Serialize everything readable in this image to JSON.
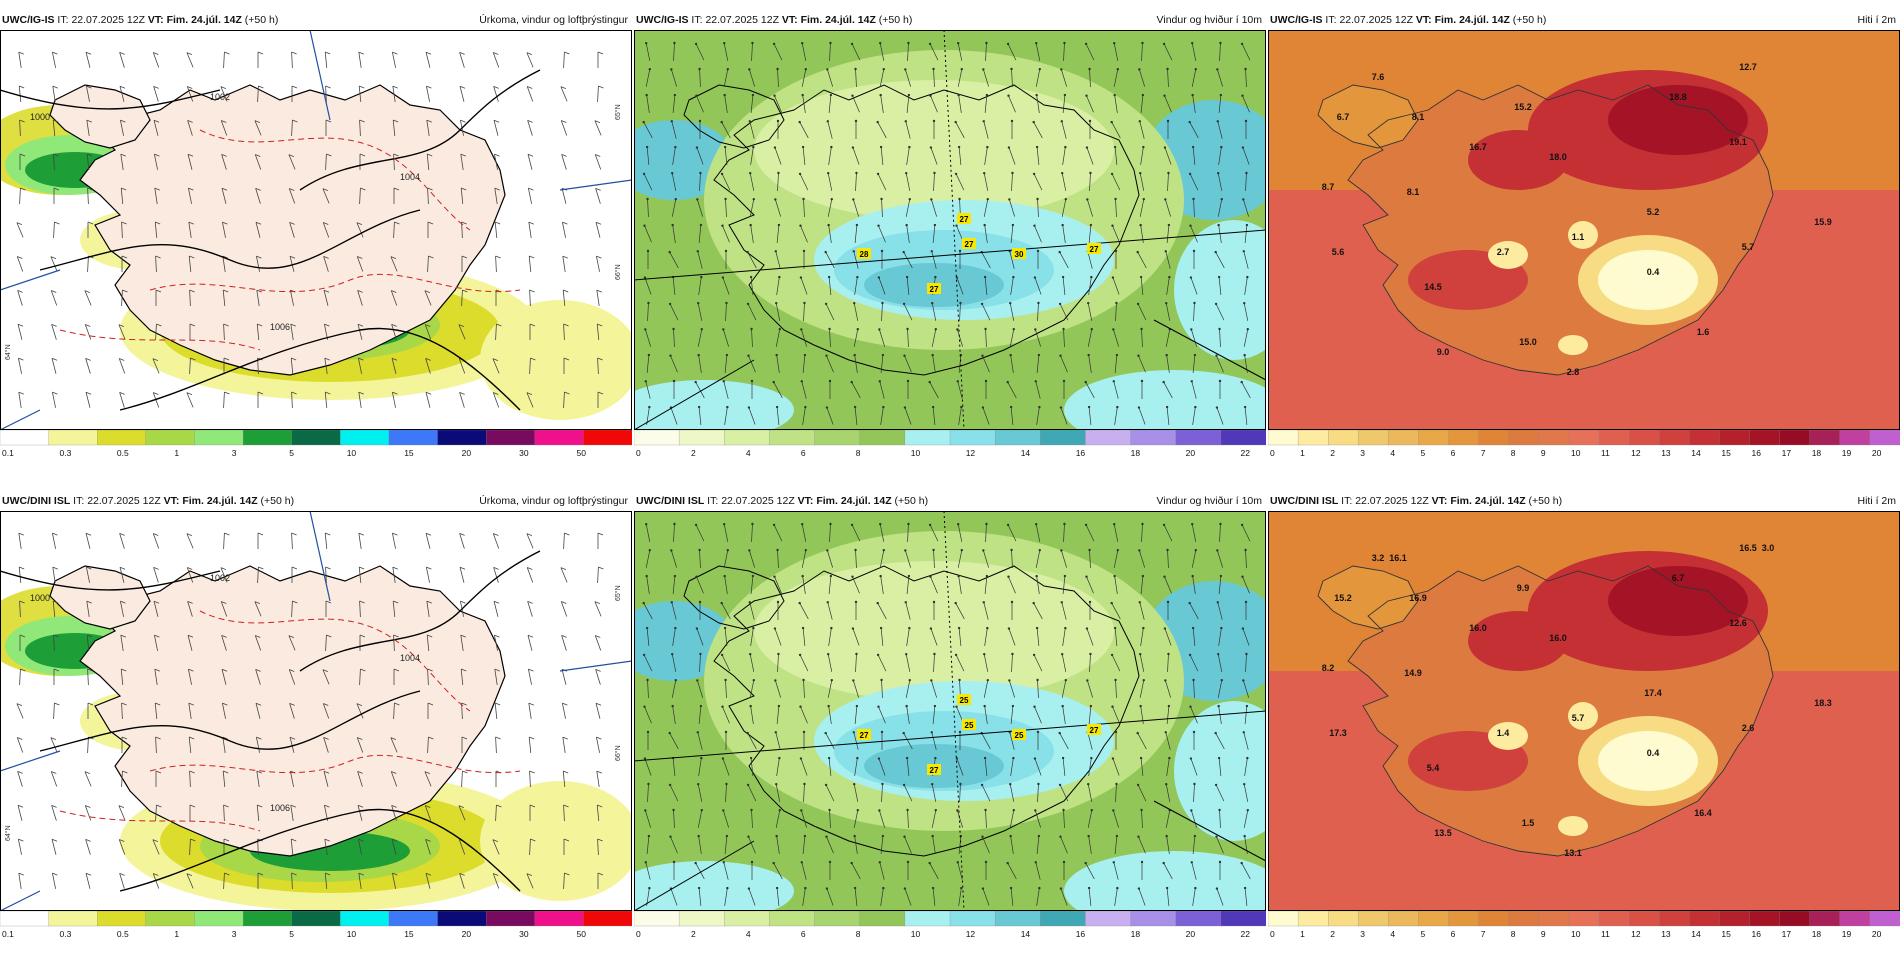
{
  "panels": [
    {
      "id": "p1",
      "model": "UWC/IG-IS",
      "it_label": "IT:",
      "it": "22.07.2025 12Z",
      "vt_label": "VT:",
      "vt": "Fim. 24.júl. 14Z",
      "lead": "(+50 h)",
      "field": "Úrkoma, vindur og loftþrýstingur",
      "kind": "precip",
      "labels": []
    },
    {
      "id": "p2",
      "model": "UWC/IG-IS",
      "it_label": "IT:",
      "it": "22.07.2025 12Z",
      "vt_label": "VT:",
      "vt": "Fim. 24.júl. 14Z",
      "lead": "(+50 h)",
      "field": "Vindur og hviður í 10m",
      "kind": "wind",
      "labels": [
        "28",
        "27",
        "27",
        "30",
        "27",
        "27"
      ]
    },
    {
      "id": "p3",
      "model": "UWC/IG-IS",
      "it_label": "IT:",
      "it": "22.07.2025 12Z",
      "vt_label": "VT:",
      "vt": "Fim. 24.júl. 14Z",
      "lead": "(+50 h)",
      "field": "Hiti í 2m",
      "kind": "temp",
      "labels": [
        "7.6",
        "12.7",
        "6.7",
        "8.1",
        "15.2",
        "18.8",
        "16.7",
        "18.0",
        "19.1",
        "8.7",
        "8.1",
        "15.9",
        "5.2",
        "5.6",
        "1.1",
        "5.7",
        "2.7",
        "0.4",
        "14.5",
        "1.6",
        "9.0",
        "15.0",
        "2.8"
      ]
    },
    {
      "id": "p4",
      "model": "UWC/DINI ISL",
      "it_label": "IT:",
      "it": "22.07.2025 12Z",
      "vt_label": "VT:",
      "vt": "Fim. 24.júl. 14Z",
      "lead": "(+50 h)",
      "field": "Úrkoma, vindur og loftþrýstingur",
      "kind": "precip",
      "labels": []
    },
    {
      "id": "p5",
      "model": "UWC/DINI ISL",
      "it_label": "IT:",
      "it": "22.07.2025 12Z",
      "vt_label": "VT:",
      "vt": "Fim. 24.júl. 14Z",
      "lead": "(+50 h)",
      "field": "Vindur og hviður í 10m",
      "kind": "wind",
      "labels": [
        "27",
        "25",
        "27",
        "25",
        "25",
        "27"
      ]
    },
    {
      "id": "p6",
      "model": "UWC/DINI ISL",
      "it_label": "IT:",
      "it": "22.07.2025 12Z",
      "vt_label": "VT:",
      "vt": "Fim. 24.júl. 14Z",
      "lead": "(+50 h)",
      "field": "Hiti í 2m",
      "kind": "temp",
      "labels": [
        "3.2",
        "16.5",
        "15.2",
        "16.9",
        "9.9",
        "6.7",
        "16.0",
        "16.0",
        "12.6",
        "8.2",
        "14.9",
        "18.3",
        "17.4",
        "17.3",
        "5.7",
        "2.6",
        "1.4",
        "0.4",
        "5.4",
        "16.4",
        "13.5",
        "1.5",
        "13.1",
        "16.1",
        "3.0"
      ]
    }
  ],
  "precip_isobars": [
    "1000",
    "1002",
    "1004",
    "1006"
  ],
  "grid_labels": [
    "65°N",
    "66°N",
    "64°N"
  ],
  "colorbars": {
    "precip": {
      "ticks": [
        "0.1",
        "0.3",
        "0.5",
        "1",
        "3",
        "5",
        "10",
        "15",
        "20",
        "30",
        "50"
      ],
      "colors": [
        "#ffffff",
        "#f4f59a",
        "#dcdc2c",
        "#a8d848",
        "#90e878",
        "#1e9e36",
        "#0a6a46",
        "#00f0f0",
        "#3c78f8",
        "#0a0a78",
        "#780a60",
        "#f0108c",
        "#f00808"
      ]
    },
    "wind": {
      "ticks": [
        "0",
        "2",
        "4",
        "6",
        "8",
        "10",
        "12",
        "14",
        "16",
        "18",
        "20",
        "22"
      ],
      "colors": [
        "#fbfde8",
        "#eef7c6",
        "#d8efa4",
        "#bfe284",
        "#a8d470",
        "#92c658",
        "#a8f0f0",
        "#88e0e8",
        "#68c8d4",
        "#40a8b4",
        "#c8b0f0",
        "#a890e8",
        "#7c60d8",
        "#5038b8"
      ]
    },
    "temp": {
      "ticks": [
        "0",
        "1",
        "2",
        "3",
        "4",
        "5",
        "6",
        "7",
        "8",
        "9",
        "10",
        "11",
        "12",
        "13",
        "14",
        "15",
        "16",
        "17",
        "18",
        "19",
        "20"
      ],
      "colors": [
        "#fffbd0",
        "#fdeca0",
        "#f8dc84",
        "#f0c86c",
        "#ecb85c",
        "#e8a848",
        "#e4963c",
        "#e08436",
        "#dc7a40",
        "#e0784c",
        "#e67058",
        "#e06050",
        "#d85046",
        "#d0403c",
        "#c43034",
        "#b4202c",
        "#a41426",
        "#960c24",
        "#a82058",
        "#c040a0",
        "#c060d0"
      ]
    }
  },
  "colors": {
    "land": "#fbeadf",
    "coast": "#000000",
    "isobar": "#000000",
    "temp_contour": "#cc2222",
    "meridian": "#2050a0",
    "wind_field": "#8cbc50",
    "wind_strong": "#5ec8d0"
  }
}
